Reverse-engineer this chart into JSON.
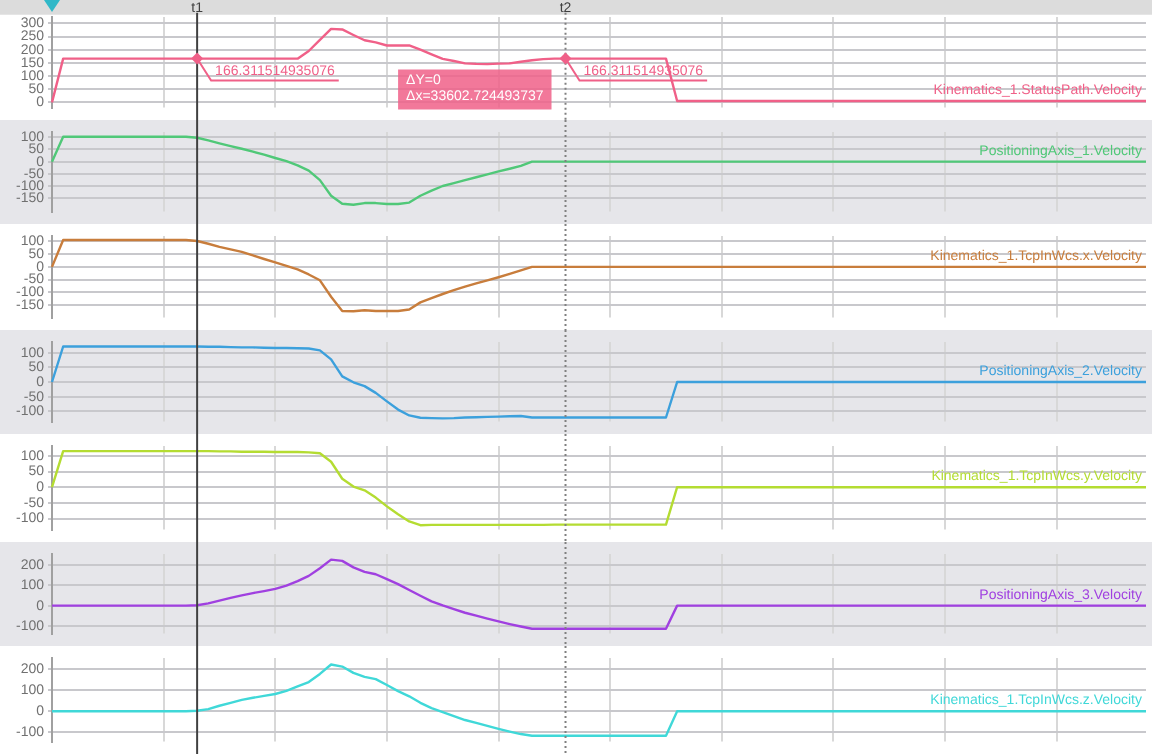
{
  "chart_data": [
    {
      "type": "line",
      "categories": [
        null,
        null,
        null,
        null,
        null,
        null,
        null,
        null,
        null,
        null,
        null,
        null,
        null,
        "t1",
        null,
        null,
        null,
        null,
        null,
        null,
        null,
        null,
        null,
        null,
        null,
        null,
        null,
        null,
        null,
        null,
        null,
        null,
        null,
        null,
        null,
        null,
        null,
        null,
        null,
        null,
        null,
        null,
        null,
        null,
        null,
        null,
        "t2",
        null,
        null,
        null,
        null,
        null,
        null,
        null,
        null,
        null,
        null,
        null,
        null,
        null,
        null,
        null,
        null,
        null,
        null,
        null,
        null,
        null,
        null,
        null,
        null,
        null,
        null,
        null,
        null,
        null,
        null,
        null,
        null,
        null,
        null,
        null,
        null,
        null,
        null,
        null,
        null,
        null,
        null,
        null,
        null,
        null,
        null,
        null,
        null,
        null,
        null,
        null,
        null
      ],
      "series": [
        {
          "name": "Kinematics_1.StatusPath.Velocity",
          "color": "#f06088",
          "values": [
            0,
            166,
            166,
            166,
            166,
            166,
            166,
            166,
            166,
            166,
            166,
            166,
            166,
            166,
            166,
            166,
            166,
            166,
            166,
            166,
            166,
            166,
            166,
            195,
            237,
            279,
            277,
            256,
            236,
            228,
            216,
            216,
            216,
            200,
            182,
            165,
            157,
            148,
            146,
            145,
            147,
            148,
            154,
            160,
            164,
            166,
            166,
            166,
            166,
            166,
            166,
            166,
            166,
            166,
            166,
            166,
            5,
            5,
            5,
            5,
            5,
            5,
            5,
            5,
            5,
            5,
            5,
            5,
            5,
            5,
            5,
            5,
            5,
            5,
            5,
            5,
            5,
            5,
            5,
            5,
            5,
            5,
            5,
            5,
            5,
            5,
            5,
            5,
            5,
            5,
            5,
            5,
            5,
            5,
            5,
            5,
            5,
            5,
            5
          ]
        }
      ],
      "ylim": [
        -20,
        325
      ],
      "yticks": [
        0,
        50,
        100,
        150,
        200,
        250,
        300
      ],
      "grid": true,
      "ref_lines": [
        {
          "axis": "x",
          "value": "t1",
          "color": "#404040",
          "line_style": "solid"
        },
        {
          "axis": "x",
          "value": "t2",
          "color": "#808080",
          "line_style": "dotted"
        }
      ],
      "annotations": [
        {
          "text": "166.311514935076",
          "x": "t1",
          "y": 166.3
        },
        {
          "text": "166.311514935076",
          "x": "t2",
          "y": 166.3
        },
        "ΔY=0",
        "Δx=33602.724493737"
      ]
    },
    {
      "type": "line",
      "categories": [
        null,
        null,
        null,
        null,
        null,
        null,
        null,
        null,
        null,
        null,
        null,
        null,
        null,
        "t1",
        null,
        null,
        null,
        null,
        null,
        null,
        null,
        null,
        null,
        null,
        null,
        null,
        null,
        null,
        null,
        null,
        null,
        null,
        null,
        null,
        null,
        null,
        null,
        null,
        null,
        null,
        null,
        null,
        null,
        null,
        null,
        null,
        "t2",
        null,
        null,
        null,
        null,
        null,
        null,
        null,
        null,
        null,
        null,
        null,
        null,
        null,
        null,
        null,
        null,
        null,
        null,
        null,
        null,
        null,
        null,
        null,
        null,
        null,
        null,
        null,
        null,
        null,
        null,
        null,
        null,
        null,
        null,
        null,
        null,
        null,
        null,
        null,
        null,
        null,
        null,
        null,
        null,
        null,
        null,
        null,
        null,
        null,
        null,
        null,
        null
      ],
      "series": [
        {
          "name": "PositioningAxis_1.Velocity",
          "color": "#50c878",
          "values": [
            0,
            102,
            102,
            102,
            102,
            102,
            102,
            102,
            102,
            102,
            102,
            102,
            102,
            98,
            87,
            75,
            64,
            53,
            41,
            29,
            15,
            2,
            -15,
            -37,
            -76,
            -140,
            -173,
            -177,
            -170,
            -170,
            -174,
            -174,
            -168,
            -140,
            -119,
            -100,
            -88,
            -76,
            -64,
            -52,
            -40,
            -29,
            -17,
            0,
            0,
            0,
            0,
            0,
            0,
            0,
            0,
            0,
            0,
            0,
            0,
            0,
            0,
            0,
            0,
            0,
            0,
            0,
            0,
            0,
            0,
            0,
            0,
            0,
            0,
            0,
            0,
            0,
            0,
            0,
            0,
            0,
            0,
            0,
            0,
            0,
            0,
            0,
            0,
            0,
            0,
            0,
            0,
            0,
            0,
            0,
            0,
            0,
            0,
            0,
            0,
            0,
            0,
            0,
            0
          ]
        }
      ],
      "ylim": [
        -205,
        120
      ],
      "yticks": [
        -150,
        -100,
        -50,
        0,
        50,
        100
      ],
      "grid": true,
      "tick_labels": "y",
      "ref_lines": [
        {
          "axis": "x",
          "value": "t1",
          "color": "#404040",
          "line_style": "solid"
        },
        {
          "axis": "x",
          "value": "t2",
          "color": "#808080",
          "line_style": "dotted"
        }
      ]
    },
    {
      "type": "line",
      "categories": [
        null,
        null,
        null,
        null,
        null,
        null,
        null,
        null,
        null,
        null,
        null,
        null,
        null,
        "t1",
        null,
        null,
        null,
        null,
        null,
        null,
        null,
        null,
        null,
        null,
        null,
        null,
        null,
        null,
        null,
        null,
        null,
        null,
        null,
        null,
        null,
        null,
        null,
        null,
        null,
        null,
        null,
        null,
        null,
        null,
        null,
        null,
        "t2",
        null,
        null,
        null,
        null,
        null,
        null,
        null,
        null,
        null,
        null,
        null,
        null,
        null,
        null,
        null,
        null,
        null,
        null,
        null,
        null,
        null,
        null,
        null,
        null,
        null,
        null,
        null,
        null,
        null,
        null,
        null,
        null,
        null,
        null,
        null,
        null,
        null,
        null,
        null,
        null,
        null,
        null,
        null,
        null,
        null,
        null,
        null,
        null,
        null,
        null,
        null,
        null
      ],
      "series": [
        {
          "name": "Kinematics_1.TcpInWcs.x.Velocity",
          "color": "#c87d3c",
          "values": [
            0,
            106,
            106,
            106,
            106,
            106,
            106,
            106,
            106,
            106,
            106,
            106,
            106,
            102,
            91,
            79,
            69,
            59,
            45,
            31,
            18,
            4,
            -10,
            -30,
            -53,
            -118,
            -174,
            -175,
            -171,
            -174,
            -174,
            -174,
            -168,
            -140,
            -123,
            -107,
            -92,
            -78,
            -65,
            -53,
            -41,
            -28,
            -14,
            0,
            0,
            0,
            0,
            0,
            0,
            0,
            0,
            0,
            0,
            0,
            0,
            0,
            0,
            0,
            0,
            0,
            0,
            0,
            0,
            0,
            0,
            0,
            0,
            0,
            0,
            0,
            0,
            0,
            0,
            0,
            0,
            0,
            0,
            0,
            0,
            0,
            0,
            0,
            0,
            0,
            0,
            0,
            0,
            0,
            0,
            0,
            0,
            0,
            0,
            0,
            0,
            0,
            0,
            0,
            0
          ]
        }
      ],
      "ylim": [
        -200,
        120
      ],
      "yticks": [
        -150,
        -100,
        -50,
        0,
        50,
        100
      ],
      "grid": true,
      "tick_labels": "y",
      "ref_lines": [
        {
          "axis": "x",
          "value": "t1",
          "color": "#404040",
          "line_style": "solid"
        },
        {
          "axis": "x",
          "value": "t2",
          "color": "#808080",
          "line_style": "dotted"
        }
      ]
    },
    {
      "type": "line",
      "categories": [
        null,
        null,
        null,
        null,
        null,
        null,
        null,
        null,
        null,
        null,
        null,
        null,
        null,
        "t1",
        null,
        null,
        null,
        null,
        null,
        null,
        null,
        null,
        null,
        null,
        null,
        null,
        null,
        null,
        null,
        null,
        null,
        null,
        null,
        null,
        null,
        null,
        null,
        null,
        null,
        null,
        null,
        null,
        null,
        null,
        null,
        null,
        "t2",
        null,
        null,
        null,
        null,
        null,
        null,
        null,
        null,
        null,
        null,
        null,
        null,
        null,
        null,
        null,
        null,
        null,
        null,
        null,
        null,
        null,
        null,
        null,
        null,
        null,
        null,
        null,
        null,
        null,
        null,
        null,
        null,
        null,
        null,
        null,
        null,
        null,
        null,
        null,
        null,
        null,
        null,
        null,
        null,
        null,
        null,
        null,
        null,
        null,
        null,
        null,
        null
      ],
      "series": [
        {
          "name": "PositioningAxis_2.Velocity",
          "color": "#3ca0dc",
          "values": [
            0,
            121,
            121,
            121,
            121,
            121,
            121,
            121,
            121,
            121,
            121,
            121,
            121,
            121,
            120,
            120,
            119,
            118,
            118,
            117,
            116,
            116,
            115,
            114,
            108,
            77,
            19,
            -1,
            -14,
            -37,
            -66,
            -94,
            -114,
            -122,
            -123,
            -124,
            -123,
            -121,
            -120,
            -119,
            -118,
            -117,
            -116,
            -121,
            -121,
            -121,
            -121,
            -121,
            -121,
            -121,
            -121,
            -121,
            -121,
            -121,
            -121,
            -121,
            0,
            0,
            0,
            0,
            0,
            0,
            0,
            0,
            0,
            0,
            0,
            0,
            0,
            0,
            0,
            0,
            0,
            0,
            0,
            0,
            0,
            0,
            0,
            0,
            0,
            0,
            0,
            0,
            0,
            0,
            0,
            0,
            0,
            0,
            0,
            0,
            0,
            0,
            0,
            0,
            0,
            0,
            0
          ]
        }
      ],
      "ylim": [
        -135,
        135
      ],
      "yticks": [
        -100,
        -50,
        0,
        50,
        100
      ],
      "grid": true,
      "tick_labels": "y",
      "ref_lines": [
        {
          "axis": "x",
          "value": "t1",
          "color": "#404040",
          "line_style": "solid"
        },
        {
          "axis": "x",
          "value": "t2",
          "color": "#808080",
          "line_style": "dotted"
        }
      ]
    },
    {
      "type": "line",
      "categories": [
        null,
        null,
        null,
        null,
        null,
        null,
        null,
        null,
        null,
        null,
        null,
        null,
        null,
        "t1",
        null,
        null,
        null,
        null,
        null,
        null,
        null,
        null,
        null,
        null,
        null,
        null,
        null,
        null,
        null,
        null,
        null,
        null,
        null,
        null,
        null,
        null,
        null,
        null,
        null,
        null,
        null,
        null,
        null,
        null,
        null,
        null,
        "t2",
        null,
        null,
        null,
        null,
        null,
        null,
        null,
        null,
        null,
        null,
        null,
        null,
        null,
        null,
        null,
        null,
        null,
        null,
        null,
        null,
        null,
        null,
        null,
        null,
        null,
        null,
        null,
        null,
        null,
        null,
        null,
        null,
        null,
        null,
        null,
        null,
        null,
        null,
        null,
        null,
        null,
        null,
        null,
        null,
        null,
        null,
        null,
        null,
        null,
        null,
        null,
        null
      ],
      "series": [
        {
          "name": "Kinematics_1.TcpInWcs.y.Velocity",
          "color": "#b4dc32",
          "values": [
            0,
            115,
            115,
            115,
            115,
            115,
            115,
            115,
            115,
            115,
            115,
            115,
            115,
            115,
            115,
            114,
            114,
            113,
            113,
            113,
            112,
            112,
            112,
            111,
            108,
            81,
            27,
            2,
            -10,
            -33,
            -61,
            -86,
            -109,
            -121,
            -120,
            -120,
            -120,
            -120,
            -120,
            -120,
            -120,
            -120,
            -120,
            -120,
            -120,
            -119,
            -119,
            -119,
            -119,
            -119,
            -119,
            -119,
            -119,
            -119,
            -119,
            -119,
            0,
            0,
            0,
            0,
            0,
            0,
            0,
            0,
            0,
            0,
            0,
            0,
            0,
            0,
            0,
            0,
            0,
            0,
            0,
            0,
            0,
            0,
            0,
            0,
            0,
            0,
            0,
            0,
            0,
            0,
            0,
            0,
            0,
            0,
            0,
            0,
            0,
            0,
            0,
            0,
            0,
            0,
            0
          ]
        }
      ],
      "ylim": [
        -135,
        130
      ],
      "yticks": [
        -100,
        -50,
        0,
        50,
        100
      ],
      "grid": true,
      "tick_labels": "y",
      "ref_lines": [
        {
          "axis": "x",
          "value": "t1",
          "color": "#404040",
          "line_style": "solid"
        },
        {
          "axis": "x",
          "value": "t2",
          "color": "#808080",
          "line_style": "dotted"
        }
      ]
    },
    {
      "type": "line",
      "categories": [
        null,
        null,
        null,
        null,
        null,
        null,
        null,
        null,
        null,
        null,
        null,
        null,
        null,
        "t1",
        null,
        null,
        null,
        null,
        null,
        null,
        null,
        null,
        null,
        null,
        null,
        null,
        null,
        null,
        null,
        null,
        null,
        null,
        null,
        null,
        null,
        null,
        null,
        null,
        null,
        null,
        null,
        null,
        null,
        null,
        null,
        null,
        "t2",
        null,
        null,
        null,
        null,
        null,
        null,
        null,
        null,
        null,
        null,
        null,
        null,
        null,
        null,
        null,
        null,
        null,
        null,
        null,
        null,
        null,
        null,
        null,
        null,
        null,
        null,
        null,
        null,
        null,
        null,
        null,
        null,
        null,
        null,
        null,
        null,
        null,
        null,
        null,
        null,
        null,
        null,
        null,
        null,
        null,
        null,
        null,
        null,
        null,
        null,
        null,
        null
      ],
      "series": [
        {
          "name": "PositioningAxis_3.Velocity",
          "color": "#a040e0",
          "values": [
            0,
            0,
            0,
            0,
            0,
            0,
            0,
            0,
            0,
            0,
            0,
            0,
            0,
            2,
            11,
            25,
            38,
            51,
            62,
            72,
            83,
            99,
            121,
            147,
            185,
            227,
            221,
            189,
            167,
            155,
            131,
            106,
            77,
            49,
            21,
            1,
            -17,
            -35,
            -49,
            -64,
            -78,
            -91,
            -103,
            -114,
            -114,
            -114,
            -114,
            -114,
            -114,
            -114,
            -114,
            -114,
            -114,
            -114,
            -114,
            -114,
            0,
            0,
            0,
            0,
            0,
            0,
            0,
            0,
            0,
            0,
            0,
            0,
            0,
            0,
            0,
            0,
            0,
            0,
            0,
            0,
            0,
            0,
            0,
            0,
            0,
            0,
            0,
            0,
            0,
            0,
            0,
            0,
            0,
            0,
            0,
            0,
            0,
            0,
            0,
            0,
            0,
            0,
            0
          ]
        }
      ],
      "ylim": [
        -138,
        253
      ],
      "yticks": [
        -100,
        0,
        100,
        200
      ],
      "grid": true,
      "tick_labels": "y",
      "ref_lines": [
        {
          "axis": "x",
          "value": "t1",
          "color": "#404040",
          "line_style": "solid"
        },
        {
          "axis": "x",
          "value": "t2",
          "color": "#808080",
          "line_style": "dotted"
        }
      ]
    },
    {
      "type": "line",
      "categories": [
        null,
        null,
        null,
        null,
        null,
        null,
        null,
        null,
        null,
        null,
        null,
        null,
        null,
        "t1",
        null,
        null,
        null,
        null,
        null,
        null,
        null,
        null,
        null,
        null,
        null,
        null,
        null,
        null,
        null,
        null,
        null,
        null,
        null,
        null,
        null,
        null,
        null,
        null,
        null,
        null,
        null,
        null,
        null,
        null,
        null,
        null,
        "t2",
        null,
        null,
        null,
        null,
        null,
        null,
        null,
        null,
        null,
        null,
        null,
        null,
        null,
        null,
        null,
        null,
        null,
        null,
        null,
        null,
        null,
        null,
        null,
        null,
        null,
        null,
        null,
        null,
        null,
        null,
        null,
        null,
        null,
        null,
        null,
        null,
        null,
        null,
        null,
        null,
        null,
        null,
        null,
        null,
        null,
        null,
        null,
        null,
        null,
        null,
        null,
        null
      ],
      "series": [
        {
          "name": "Kinematics_1.TcpInWcs.z.Velocity",
          "color": "#40d8d8",
          "values": [
            0,
            0,
            0,
            0,
            0,
            0,
            0,
            0,
            0,
            0,
            0,
            0,
            0,
            2,
            10,
            26,
            40,
            54,
            64,
            73,
            82,
            97,
            118,
            139,
            178,
            223,
            213,
            183,
            164,
            153,
            125,
            96,
            71,
            40,
            15,
            -4,
            -23,
            -42,
            -56,
            -70,
            -84,
            -97,
            -109,
            -117,
            -117,
            -117,
            -117,
            -117,
            -117,
            -117,
            -117,
            -117,
            -117,
            -117,
            -117,
            -117,
            0,
            0,
            0,
            0,
            0,
            0,
            0,
            0,
            0,
            0,
            0,
            0,
            0,
            0,
            0,
            0,
            0,
            0,
            0,
            0,
            0,
            0,
            0,
            0,
            0,
            0,
            0,
            0,
            0,
            0,
            0,
            0,
            0,
            0,
            0,
            0,
            0,
            0,
            0,
            0,
            0,
            0,
            0
          ]
        }
      ],
      "ylim": [
        -145,
        252
      ],
      "yticks": [
        -100,
        0,
        100,
        200
      ],
      "grid": true,
      "tick_labels": "y",
      "ref_lines": [
        {
          "axis": "x",
          "value": "t1",
          "color": "#404040",
          "line_style": "solid"
        },
        {
          "axis": "x",
          "value": "t2",
          "color": "#808080",
          "line_style": "dotted"
        }
      ]
    }
  ]
}
